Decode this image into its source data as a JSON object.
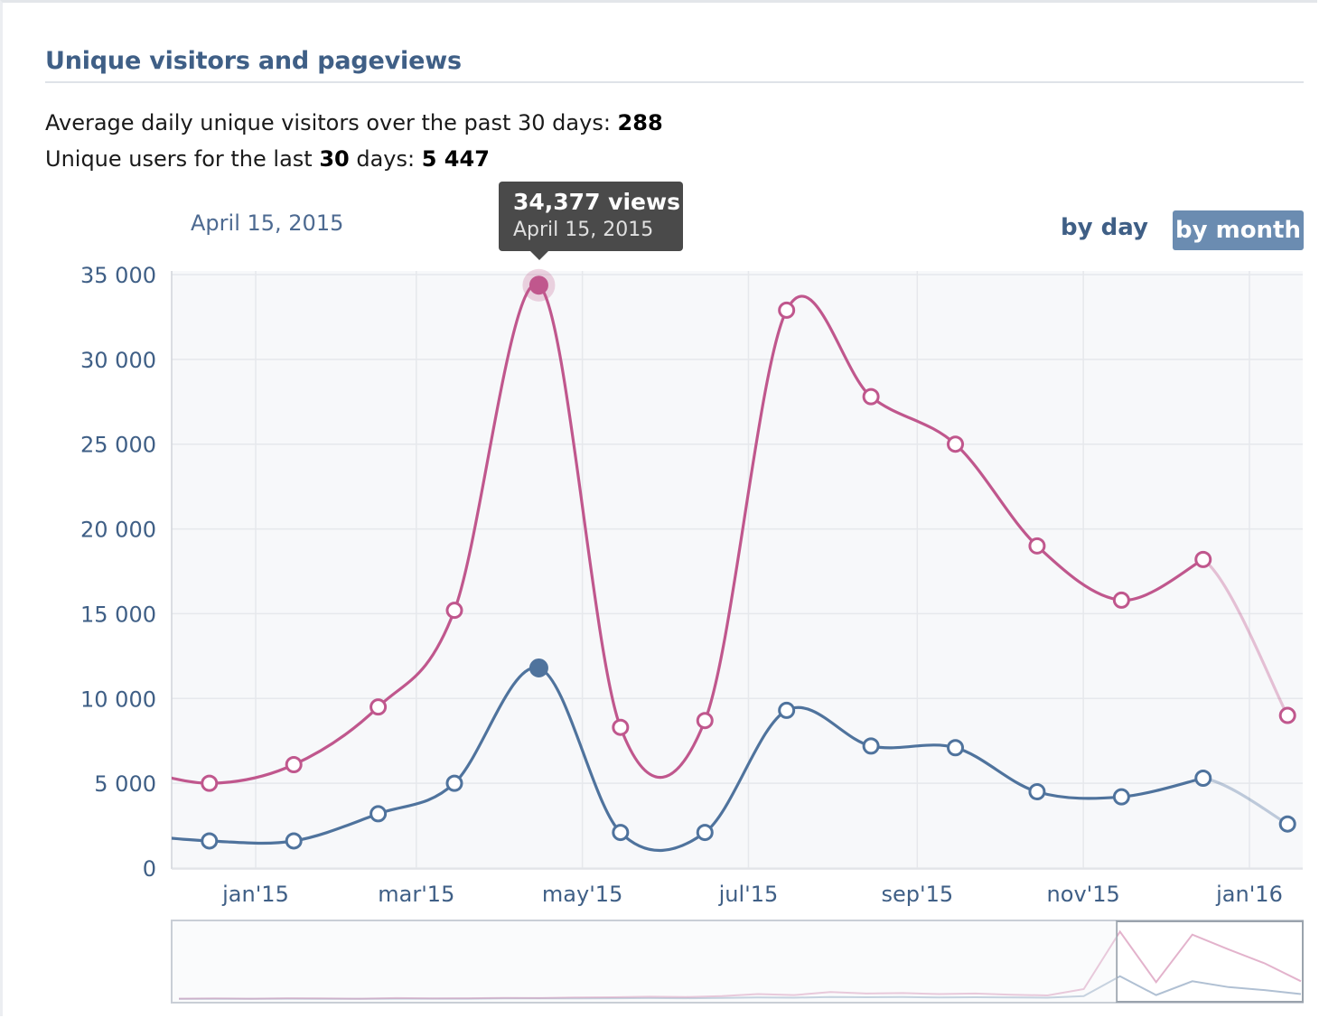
{
  "header": {
    "title": "Unique visitors and pageviews"
  },
  "stats": {
    "line1_prefix": "Average daily unique visitors over the past 30 days: ",
    "line1_value": "288",
    "line2_prefix": "Unique users for the last ",
    "line2_days": "30",
    "line2_mid": " days: ",
    "line2_value": "5 447"
  },
  "controls": {
    "selected_date": "April 15, 2015",
    "by_day_label": "by day",
    "by_month_label": "by month",
    "active_mode": "by month"
  },
  "tooltip": {
    "value_text": "34,377 views",
    "date_text": "April 15, 2015"
  },
  "colors": {
    "views": "#c0578d",
    "visitors": "#4f739d",
    "tooltip_bg": "#4a4a4a",
    "active_button": "#6b8cb1",
    "plot_bg": "#f7f8fa"
  },
  "chart_data": {
    "type": "line",
    "x": [
      "2014-12-15",
      "2015-01-15",
      "2015-02-15",
      "2015-03-15",
      "2015-04-15",
      "2015-05-15",
      "2015-06-15",
      "2015-07-15",
      "2015-08-15",
      "2015-09-15",
      "2015-10-15",
      "2015-11-15",
      "2015-12-15",
      "2016-01-15"
    ],
    "x_ticks": [
      "jan'15",
      "mar'15",
      "may'15",
      "jul'15",
      "sep'15",
      "nov'15",
      "jan'16"
    ],
    "y_ticks": [
      "0",
      "5 000",
      "10 000",
      "15 000",
      "20 000",
      "25 000",
      "30 000",
      "35 000"
    ],
    "ylim": [
      0,
      35000
    ],
    "grid": true,
    "series": [
      {
        "name": "views",
        "values": [
          5000,
          6100,
          9500,
          15200,
          34377,
          8300,
          8700,
          32900,
          27800,
          25000,
          19000,
          15800,
          18200,
          9000
        ],
        "highlight_index": 4,
        "last_point_partial": true
      },
      {
        "name": "visitors",
        "values": [
          1600,
          1600,
          3200,
          5000,
          11800,
          2100,
          2100,
          9300,
          7200,
          7100,
          4500,
          4200,
          5300,
          2600
        ],
        "highlight_index": 4,
        "last_point_partial": true
      }
    ],
    "navigator": {
      "views": [
        0.2,
        0.3,
        0.2,
        0.4,
        0.3,
        0.2,
        0.5,
        0.3,
        0.4,
        0.6,
        0.5,
        0.8,
        0.9,
        1.2,
        1.0,
        1.5,
        2.5,
        2.0,
        3.5,
        2.8,
        3.0,
        2.5,
        2.8,
        2.2,
        1.8,
        5.0,
        34.0,
        8.5,
        32.5,
        25.0,
        18.0,
        9.0
      ],
      "visitors": [
        0.1,
        0.1,
        0.1,
        0.2,
        0.1,
        0.1,
        0.2,
        0.2,
        0.2,
        0.3,
        0.3,
        0.3,
        0.4,
        0.5,
        0.4,
        0.6,
        0.8,
        0.7,
        1.0,
        0.9,
        1.0,
        0.8,
        0.9,
        0.8,
        0.7,
        1.5,
        11.5,
        2.0,
        9.0,
        6.0,
        4.5,
        2.5
      ]
    }
  }
}
